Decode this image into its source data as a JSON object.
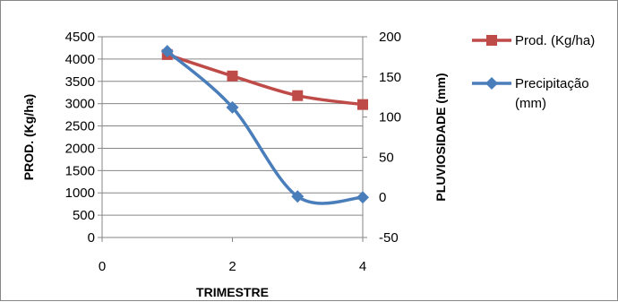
{
  "chart_data": {
    "type": "line",
    "xlabel": "TRIMESTRE",
    "ylabel": "PROD. (Kg/ha)",
    "y2label": "PLUVIOSIDADE (mm)",
    "xlim": [
      0,
      4
    ],
    "xticks": [
      0,
      2,
      4
    ],
    "ylim": [
      0,
      4500
    ],
    "yticks": [
      0,
      500,
      1000,
      1500,
      2000,
      2500,
      3000,
      3500,
      4000,
      4500
    ],
    "y2lim": [
      -50,
      200
    ],
    "y2ticks": [
      -50,
      0,
      50,
      100,
      150,
      200
    ],
    "grid": "horizontal",
    "legend_position": "right",
    "series": [
      {
        "name": "Prod. (Kg/ha)",
        "axis": "left",
        "color": "#BE4B48",
        "marker": "square",
        "smooth": true,
        "x": [
          1,
          2,
          3,
          4
        ],
        "values": [
          4100,
          3620,
          3180,
          2980
        ]
      },
      {
        "name": "Precipitação (mm)",
        "axis": "right",
        "color": "#4A7EBB",
        "marker": "diamond",
        "smooth": true,
        "x": [
          1,
          2,
          3,
          4
        ],
        "values": [
          182,
          112,
          1,
          0
        ]
      }
    ]
  }
}
